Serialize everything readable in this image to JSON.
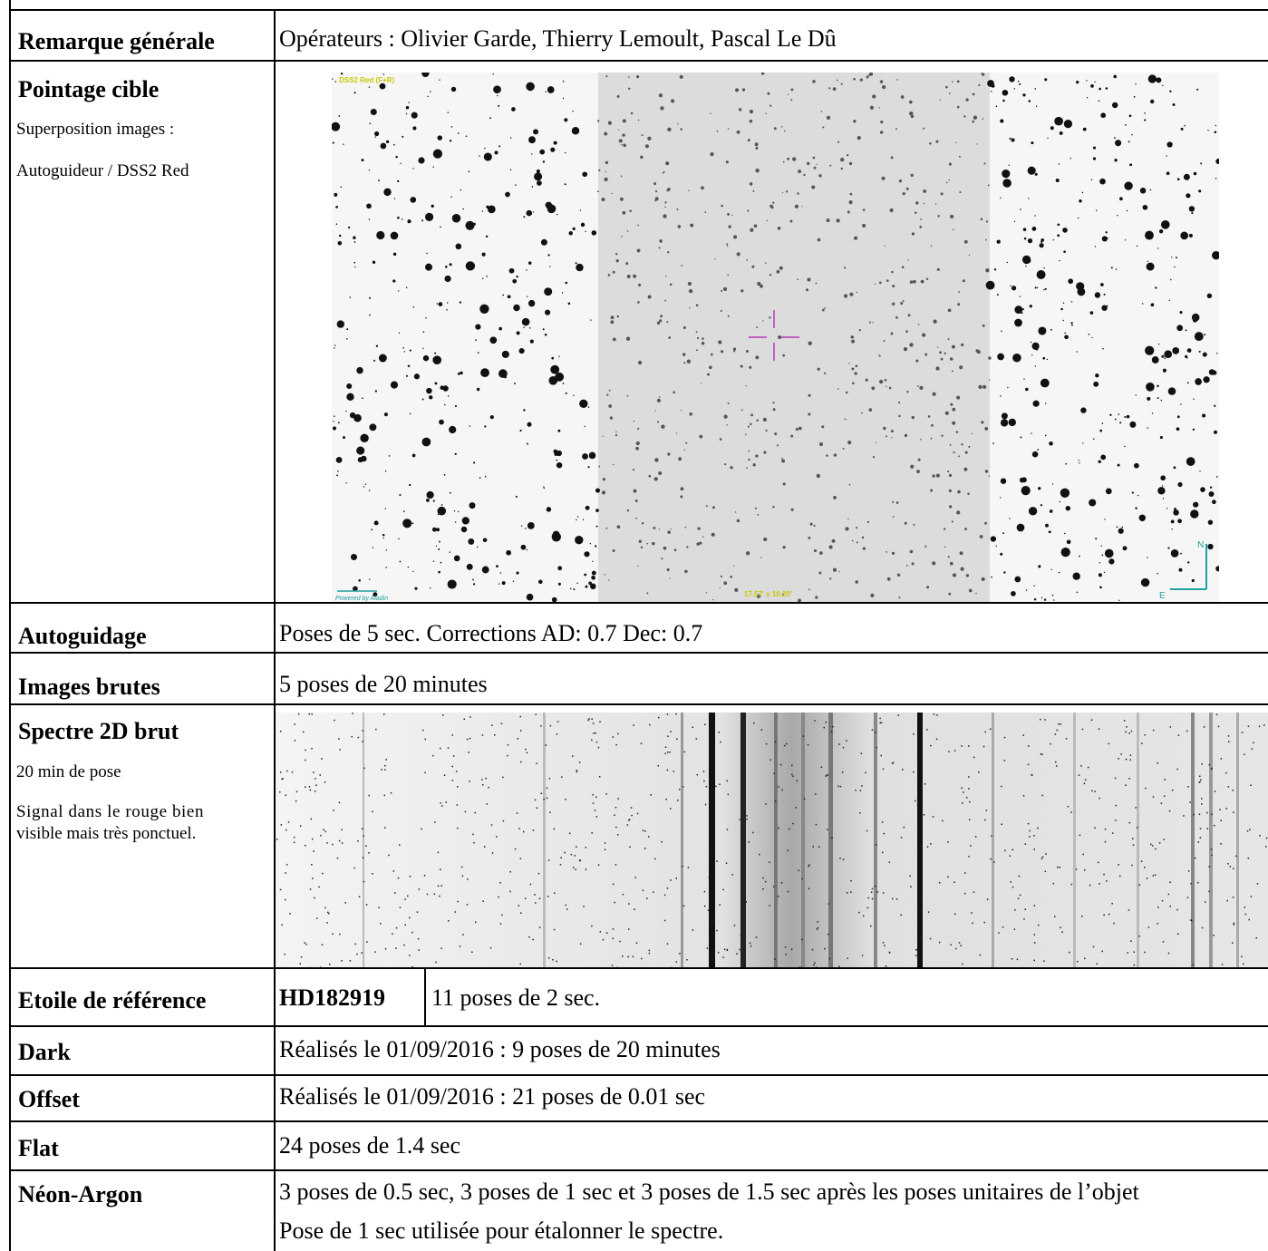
{
  "rows": {
    "remarque": {
      "label": "Remarque générale",
      "value": "Opérateurs : Olivier Garde, Thierry Lemoult, Pascal Le Dû"
    },
    "pointage": {
      "label": "Pointage cible",
      "lines": [
        "Superposition images :",
        "Autoguideur / DSS2 Red"
      ],
      "image_tags": {
        "survey": "DSS2 Red (F+R)",
        "size": "17.57' x 10.20'",
        "credit": "Powered by Aladin",
        "north": "N",
        "east": "E"
      }
    },
    "autoguidage": {
      "label": "Autoguidage",
      "value": "Poses de 5 sec. Corrections AD: 0.7 Dec: 0.7"
    },
    "images_brutes": {
      "label": "Images brutes",
      "value": "5 poses de 20 minutes"
    },
    "spectre": {
      "label": "Spectre 2D brut",
      "lines": [
        "20 min de pose",
        "Signal dans le rouge bien",
        "visible mais très ponctuel."
      ]
    },
    "reference": {
      "label": "Etoile de référence",
      "star": "HD182919",
      "value": "11 poses de 2 sec."
    },
    "dark": {
      "label": "Dark",
      "value": "Réalisés le 01/09/2016 : 9 poses de 20 minutes"
    },
    "offset": {
      "label": "Offset",
      "value": "Réalisés le 01/09/2016 : 21 poses de 0.01 sec"
    },
    "flat": {
      "label": "Flat",
      "value": "24 poses de 1.4 sec"
    },
    "neon": {
      "label": "Néon-Argon",
      "value1": "3 poses de 0.5 sec, 3 poses de 1 sec et 3 poses de 1.5 sec après les poses unitaires de l’objet",
      "value2": "Pose de 1 sec utilisée pour étalonner le spectre."
    }
  },
  "colors": {
    "border": "#000000",
    "crosshair": "#c060c0",
    "compass": "#20a0a0",
    "tag": "#e0e000"
  }
}
